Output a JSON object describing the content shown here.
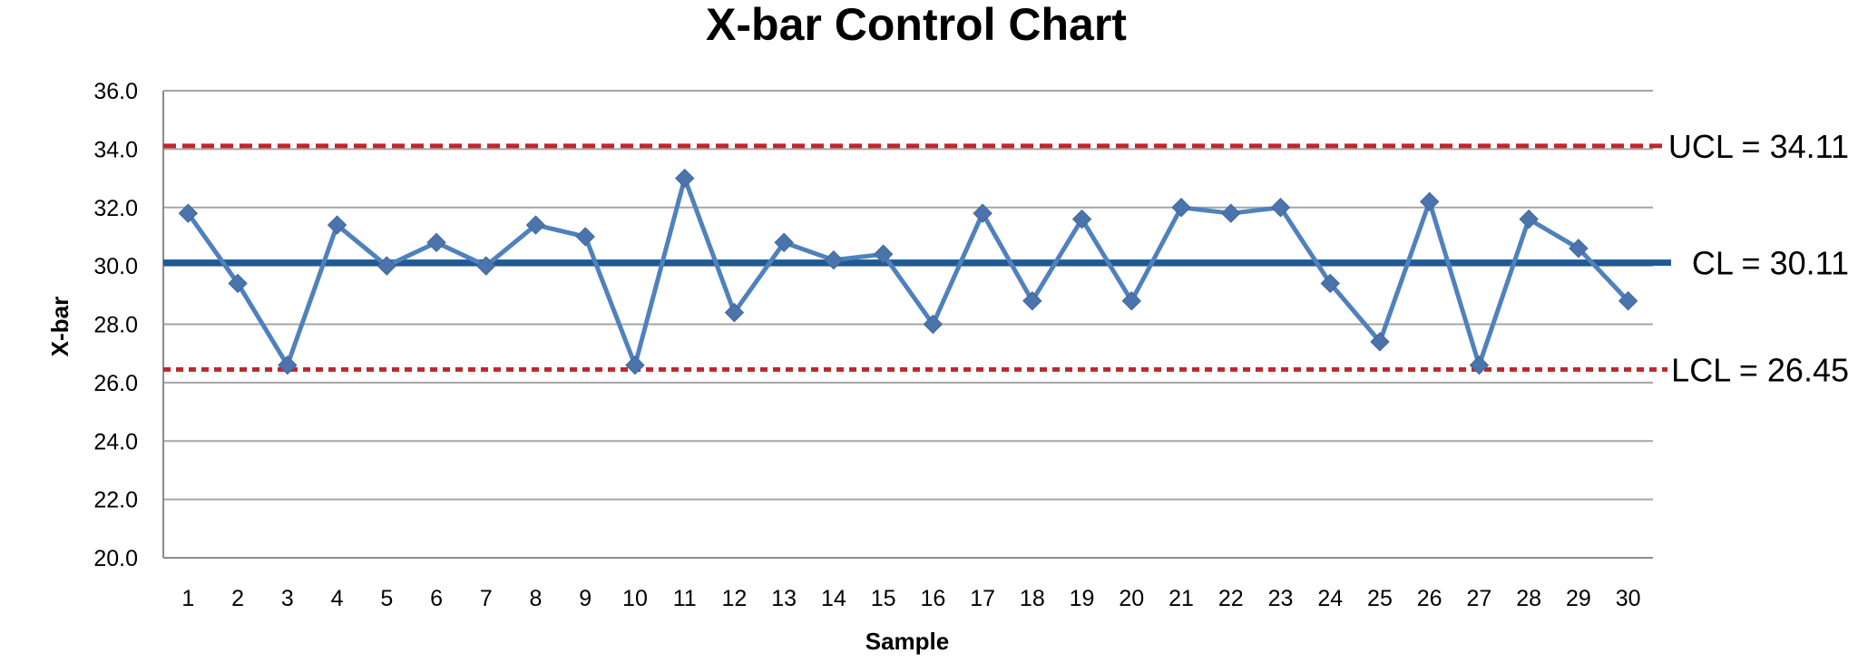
{
  "chart_data": {
    "type": "line",
    "title": "X-bar Control Chart",
    "xlabel": "Sample",
    "ylabel": "X-bar",
    "ylim": [
      20,
      36
    ],
    "y_ticks": [
      "20.0",
      "22.0",
      "24.0",
      "26.0",
      "28.0",
      "30.0",
      "32.0",
      "34.0",
      "36.0"
    ],
    "categories": [
      "1",
      "2",
      "3",
      "4",
      "5",
      "6",
      "7",
      "8",
      "9",
      "10",
      "11",
      "12",
      "13",
      "14",
      "15",
      "16",
      "17",
      "18",
      "19",
      "20",
      "21",
      "22",
      "23",
      "24",
      "25",
      "26",
      "27",
      "28",
      "29",
      "30"
    ],
    "series": [
      {
        "values": [
          31.8,
          29.4,
          26.6,
          31.4,
          30.0,
          30.8,
          30.0,
          31.4,
          31.0,
          26.6,
          33.0,
          28.4,
          30.8,
          30.2,
          30.4,
          28.0,
          31.8,
          28.8,
          31.6,
          28.8,
          32.0,
          31.8,
          32.0,
          29.4,
          27.4,
          32.2,
          26.6,
          31.6,
          30.6,
          28.8
        ],
        "color": "#4f81bd",
        "marker": "diamond"
      }
    ],
    "reference_lines": [
      {
        "label": "UCL = 34.11",
        "value": 34.11,
        "style": "dashed",
        "color": "#c0262d"
      },
      {
        "label": "CL = 30.11",
        "value": 30.11,
        "style": "solid",
        "color": "#1f5a94"
      },
      {
        "label": "LCL = 26.45",
        "value": 26.45,
        "style": "dashed",
        "color": "#c0262d"
      }
    ],
    "grid": true,
    "legend": "none"
  }
}
